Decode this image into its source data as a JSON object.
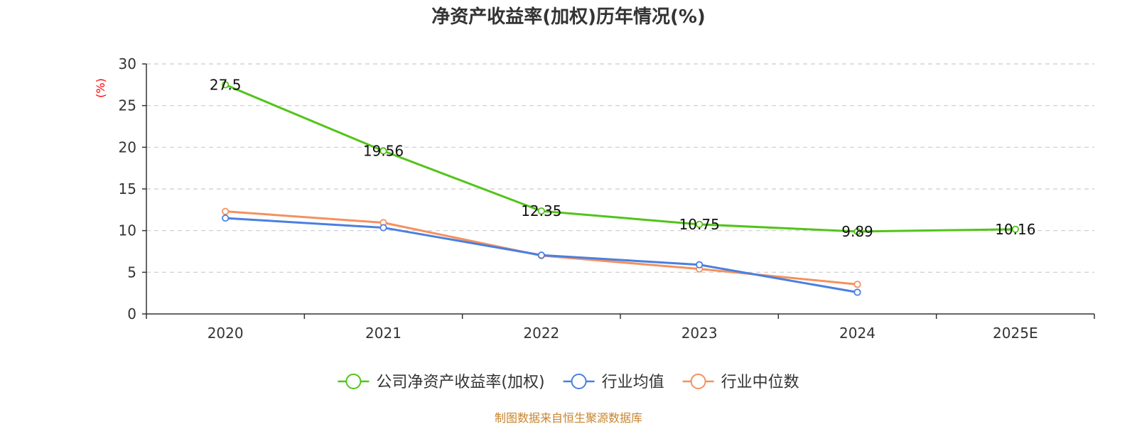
{
  "chart_data": {
    "type": "line",
    "title": "净资产收益率(加权)历年情况(%)",
    "ylabel": "(%)",
    "ylim": [
      0,
      30
    ],
    "yticks": [
      0,
      5,
      10,
      15,
      20,
      25,
      30
    ],
    "categories": [
      "2020",
      "2021",
      "2022",
      "2023",
      "2024",
      "2025E"
    ],
    "series": [
      {
        "name": "公司净资产收益率(加权)",
        "color": "#52c41a",
        "values": [
          27.5,
          19.56,
          12.35,
          10.75,
          9.89,
          10.16
        ],
        "labels": [
          "27.5",
          "19.56",
          "12.35",
          "10.75",
          "9.89",
          "10.16"
        ]
      },
      {
        "name": "行业均值",
        "color": "#4a7fe0",
        "values": [
          11.5,
          10.35,
          7.05,
          5.9,
          2.6,
          null
        ]
      },
      {
        "name": "行业中位数",
        "color": "#f4915f",
        "values": [
          12.3,
          10.95,
          7.0,
          5.4,
          3.55,
          null
        ]
      }
    ],
    "legend_position": "bottom",
    "grid": true,
    "source": "制图数据来自恒生聚源数据库"
  },
  "colors": {
    "axis": "#333333",
    "grid": "#cccccc",
    "unit_label": "#ff0000",
    "source_text": "#c8842e"
  }
}
